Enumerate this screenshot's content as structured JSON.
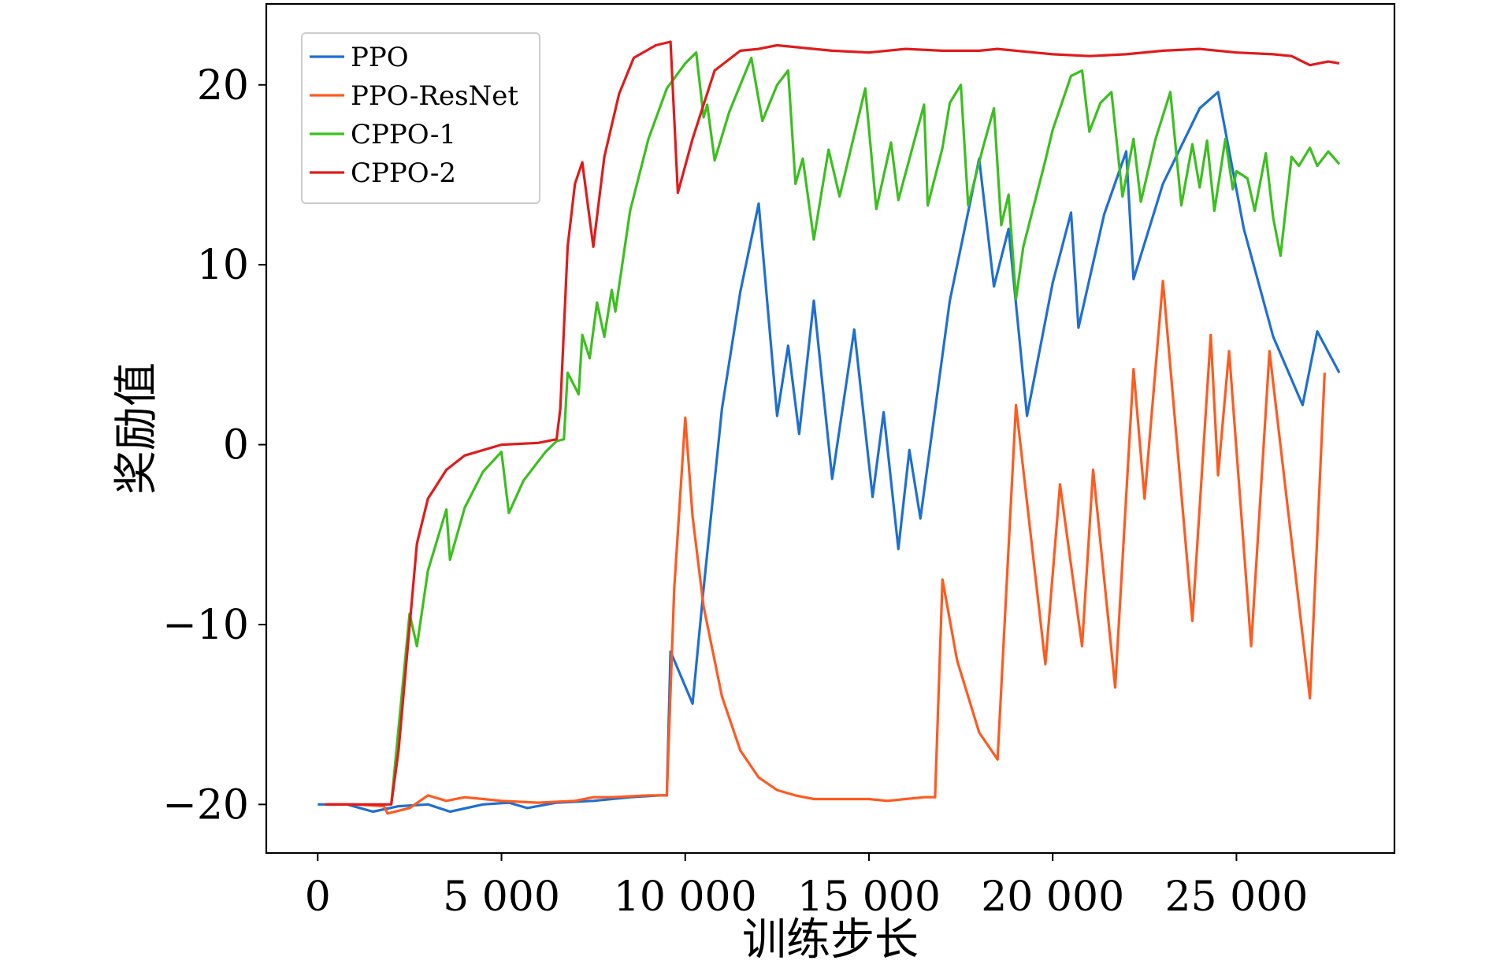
{
  "chart_data": {
    "type": "line",
    "title": "",
    "xlabel": "训练步长",
    "ylabel": "奖励值",
    "xlim": [
      -1400,
      29300
    ],
    "ylim": [
      -22.7,
      24.5
    ],
    "xticks": [
      0,
      5000,
      10000,
      15000,
      20000,
      25000
    ],
    "xtick_labels": [
      "0",
      "5 000",
      "10 000",
      "15 000",
      "20 000",
      "25 000"
    ],
    "yticks": [
      -20,
      -10,
      0,
      10,
      20
    ],
    "ytick_labels": [
      "−20",
      "−10",
      "0",
      "10",
      "20"
    ],
    "grid": false,
    "legend_position": "upper-left",
    "series": [
      {
        "name": "PPO",
        "color": "#1f6fd1",
        "points": [
          [
            0,
            -20.0
          ],
          [
            800,
            -20.0
          ],
          [
            1500,
            -20.4
          ],
          [
            2200,
            -20.1
          ],
          [
            3000,
            -20.0
          ],
          [
            3600,
            -20.4
          ],
          [
            4500,
            -20.0
          ],
          [
            5200,
            -19.9
          ],
          [
            5700,
            -20.2
          ],
          [
            6500,
            -19.9
          ],
          [
            7500,
            -19.8
          ],
          [
            8500,
            -19.6
          ],
          [
            9300,
            -19.5
          ],
          [
            9500,
            -19.5
          ],
          [
            9600,
            -11.5
          ],
          [
            10200,
            -14.4
          ],
          [
            10500,
            -8.0
          ],
          [
            11000,
            2.0
          ],
          [
            11500,
            8.5
          ],
          [
            12000,
            13.4
          ],
          [
            12500,
            1.6
          ],
          [
            12800,
            5.5
          ],
          [
            13100,
            0.6
          ],
          [
            13500,
            8.0
          ],
          [
            14000,
            -1.9
          ],
          [
            14600,
            6.4
          ],
          [
            15100,
            -2.9
          ],
          [
            15400,
            1.8
          ],
          [
            15800,
            -5.8
          ],
          [
            16100,
            -0.3
          ],
          [
            16400,
            -4.1
          ],
          [
            17200,
            8.0
          ],
          [
            18000,
            15.9
          ],
          [
            18400,
            8.8
          ],
          [
            18800,
            12.0
          ],
          [
            19300,
            1.6
          ],
          [
            20000,
            9.0
          ],
          [
            20500,
            12.9
          ],
          [
            20700,
            6.5
          ],
          [
            21400,
            12.8
          ],
          [
            22000,
            16.3
          ],
          [
            22200,
            9.2
          ],
          [
            23000,
            14.5
          ],
          [
            24000,
            18.7
          ],
          [
            24500,
            19.6
          ],
          [
            25200,
            12.0
          ],
          [
            26000,
            6.0
          ],
          [
            26800,
            2.2
          ],
          [
            27200,
            6.3
          ],
          [
            27800,
            4.0
          ]
        ]
      },
      {
        "name": "PPO-ResNet",
        "color": "#ff5a1f",
        "points": [
          [
            200,
            -20.0
          ],
          [
            1000,
            -20.0
          ],
          [
            1800,
            -20.1
          ],
          [
            1900,
            -20.5
          ],
          [
            2500,
            -20.2
          ],
          [
            3000,
            -19.5
          ],
          [
            3500,
            -19.8
          ],
          [
            4000,
            -19.6
          ],
          [
            5000,
            -19.8
          ],
          [
            6000,
            -19.9
          ],
          [
            7000,
            -19.8
          ],
          [
            7500,
            -19.6
          ],
          [
            8000,
            -19.6
          ],
          [
            9000,
            -19.5
          ],
          [
            9500,
            -19.5
          ],
          [
            9700,
            -8.0
          ],
          [
            10000,
            1.5
          ],
          [
            10200,
            -4.0
          ],
          [
            10500,
            -9.0
          ],
          [
            11000,
            -14.0
          ],
          [
            11500,
            -17.0
          ],
          [
            12000,
            -18.5
          ],
          [
            12500,
            -19.2
          ],
          [
            13000,
            -19.5
          ],
          [
            13500,
            -19.7
          ],
          [
            15000,
            -19.7
          ],
          [
            15500,
            -19.8
          ],
          [
            16500,
            -19.6
          ],
          [
            16800,
            -19.6
          ],
          [
            17000,
            -7.5
          ],
          [
            17400,
            -12.0
          ],
          [
            18000,
            -16.0
          ],
          [
            18500,
            -17.5
          ],
          [
            19000,
            2.2
          ],
          [
            19800,
            -12.2
          ],
          [
            20200,
            -2.2
          ],
          [
            20800,
            -11.2
          ],
          [
            21100,
            -1.4
          ],
          [
            21700,
            -13.5
          ],
          [
            22200,
            4.2
          ],
          [
            22500,
            -3.0
          ],
          [
            23000,
            9.1
          ],
          [
            23800,
            -9.8
          ],
          [
            24300,
            6.1
          ],
          [
            24500,
            -1.7
          ],
          [
            24800,
            5.2
          ],
          [
            25400,
            -11.2
          ],
          [
            25900,
            5.2
          ],
          [
            27000,
            -14.1
          ],
          [
            27400,
            4.0
          ]
        ]
      },
      {
        "name": "CPPO-1",
        "color": "#3cbf1f",
        "points": [
          [
            2000,
            -20.0
          ],
          [
            2500,
            -9.4
          ],
          [
            2700,
            -11.2
          ],
          [
            3000,
            -7.0
          ],
          [
            3500,
            -3.6
          ],
          [
            3600,
            -6.4
          ],
          [
            4000,
            -3.5
          ],
          [
            4500,
            -1.5
          ],
          [
            5000,
            -0.4
          ],
          [
            5200,
            -3.8
          ],
          [
            5600,
            -2.0
          ],
          [
            6200,
            -0.4
          ],
          [
            6500,
            0.2
          ],
          [
            6700,
            0.3
          ],
          [
            6800,
            4.0
          ],
          [
            7100,
            2.8
          ],
          [
            7200,
            6.1
          ],
          [
            7400,
            4.8
          ],
          [
            7600,
            7.9
          ],
          [
            7800,
            6.0
          ],
          [
            8000,
            8.6
          ],
          [
            8100,
            7.4
          ],
          [
            8500,
            13.0
          ],
          [
            9000,
            17.0
          ],
          [
            9500,
            19.8
          ],
          [
            10000,
            21.2
          ],
          [
            10300,
            21.8
          ],
          [
            10500,
            18.2
          ],
          [
            10600,
            18.9
          ],
          [
            10800,
            15.8
          ],
          [
            11200,
            18.5
          ],
          [
            11800,
            21.5
          ],
          [
            12100,
            18.0
          ],
          [
            12500,
            20.0
          ],
          [
            12800,
            20.8
          ],
          [
            13000,
            14.5
          ],
          [
            13200,
            15.9
          ],
          [
            13500,
            11.4
          ],
          [
            13900,
            16.4
          ],
          [
            14200,
            13.8
          ],
          [
            14900,
            19.8
          ],
          [
            15200,
            13.1
          ],
          [
            15600,
            16.8
          ],
          [
            15800,
            13.6
          ],
          [
            16500,
            18.9
          ],
          [
            16600,
            13.3
          ],
          [
            17000,
            16.5
          ],
          [
            17200,
            19.0
          ],
          [
            17500,
            20.0
          ],
          [
            17700,
            13.3
          ],
          [
            18100,
            16.5
          ],
          [
            18400,
            18.7
          ],
          [
            18600,
            12.2
          ],
          [
            18800,
            13.9
          ],
          [
            19000,
            8.1
          ],
          [
            19200,
            11.0
          ],
          [
            19800,
            15.8
          ],
          [
            20000,
            17.5
          ],
          [
            20500,
            20.5
          ],
          [
            20800,
            20.8
          ],
          [
            21000,
            17.4
          ],
          [
            21300,
            19.0
          ],
          [
            21600,
            19.6
          ],
          [
            21900,
            13.8
          ],
          [
            22200,
            17.0
          ],
          [
            22400,
            13.5
          ],
          [
            22800,
            17.0
          ],
          [
            23200,
            19.6
          ],
          [
            23500,
            13.3
          ],
          [
            23800,
            16.7
          ],
          [
            24000,
            14.3
          ],
          [
            24200,
            16.9
          ],
          [
            24400,
            13.0
          ],
          [
            24700,
            17.0
          ],
          [
            24900,
            14.2
          ],
          [
            25000,
            15.2
          ],
          [
            25300,
            14.8
          ],
          [
            25500,
            13.0
          ],
          [
            25800,
            16.2
          ],
          [
            26000,
            12.6
          ],
          [
            26200,
            10.5
          ],
          [
            26500,
            16.0
          ],
          [
            26700,
            15.5
          ],
          [
            27000,
            16.5
          ],
          [
            27200,
            15.5
          ],
          [
            27500,
            16.3
          ],
          [
            27800,
            15.6
          ]
        ]
      },
      {
        "name": "CPPO-2",
        "color": "#e01b1b",
        "points": [
          [
            200,
            -20.0
          ],
          [
            2000,
            -20.0
          ],
          [
            2200,
            -17.0
          ],
          [
            2700,
            -5.5
          ],
          [
            3000,
            -3.0
          ],
          [
            3500,
            -1.4
          ],
          [
            4000,
            -0.6
          ],
          [
            5000,
            0.0
          ],
          [
            6000,
            0.1
          ],
          [
            6500,
            0.3
          ],
          [
            6600,
            2.0
          ],
          [
            6800,
            11.0
          ],
          [
            7000,
            14.5
          ],
          [
            7200,
            15.7
          ],
          [
            7500,
            11.0
          ],
          [
            7800,
            16.0
          ],
          [
            8200,
            19.5
          ],
          [
            8600,
            21.5
          ],
          [
            9200,
            22.2
          ],
          [
            9600,
            22.4
          ],
          [
            9800,
            14.0
          ],
          [
            10200,
            17.0
          ],
          [
            10800,
            20.8
          ],
          [
            11500,
            21.9
          ],
          [
            12000,
            22.0
          ],
          [
            12500,
            22.2
          ],
          [
            13500,
            22.0
          ],
          [
            14000,
            21.9
          ],
          [
            15000,
            21.8
          ],
          [
            16000,
            22.0
          ],
          [
            17000,
            21.9
          ],
          [
            18000,
            21.9
          ],
          [
            18500,
            22.0
          ],
          [
            19500,
            21.8
          ],
          [
            20000,
            21.7
          ],
          [
            21000,
            21.6
          ],
          [
            22000,
            21.7
          ],
          [
            23000,
            21.9
          ],
          [
            24000,
            22.0
          ],
          [
            25000,
            21.8
          ],
          [
            26000,
            21.7
          ],
          [
            26500,
            21.6
          ],
          [
            27000,
            21.1
          ],
          [
            27500,
            21.3
          ],
          [
            27800,
            21.2
          ]
        ]
      }
    ]
  }
}
